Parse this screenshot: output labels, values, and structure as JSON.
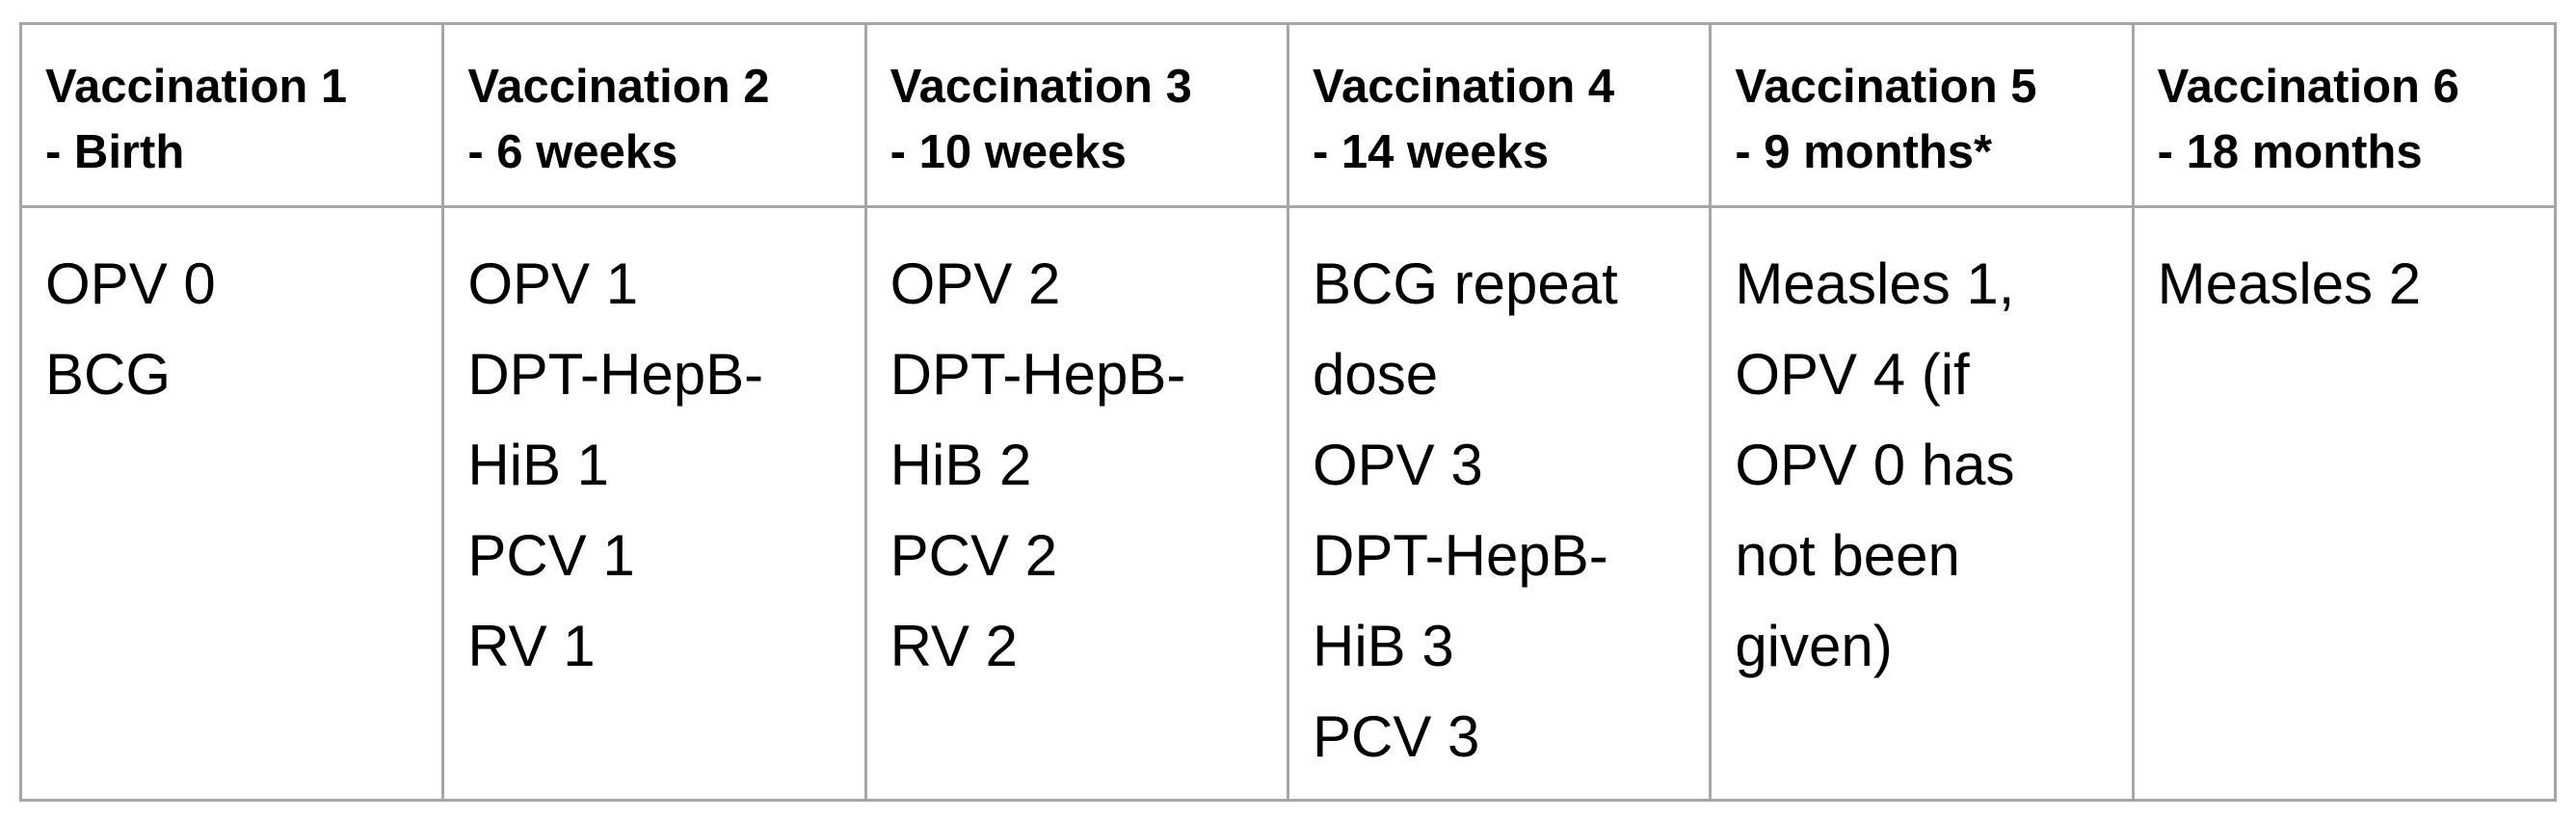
{
  "table": {
    "columns": [
      {
        "header": [
          "Vaccination 1",
          "- Birth"
        ],
        "items": [
          "OPV 0",
          "BCG"
        ]
      },
      {
        "header": [
          "Vaccination 2",
          "- 6 weeks"
        ],
        "items": [
          "OPV 1",
          "DPT-HepB-",
          "HiB 1",
          "PCV 1",
          "RV 1"
        ]
      },
      {
        "header": [
          "Vaccination 3",
          "- 10 weeks"
        ],
        "items": [
          "OPV 2",
          "DPT-HepB-",
          "HiB 2",
          "PCV 2",
          "RV 2"
        ]
      },
      {
        "header": [
          "Vaccination 4",
          "- 14 weeks"
        ],
        "items": [
          "BCG repeat",
          "dose",
          "OPV 3",
          "DPT-HepB-",
          "HiB 3",
          "PCV 3"
        ]
      },
      {
        "header": [
          "Vaccination 5",
          "- 9 months*"
        ],
        "items": [
          "Measles 1,",
          "OPV 4 (if",
          "OPV 0 has",
          "not been",
          "given)"
        ]
      },
      {
        "header": [
          "Vaccination 6",
          "- 18 months"
        ],
        "items": [
          "Measles 2"
        ]
      }
    ]
  }
}
